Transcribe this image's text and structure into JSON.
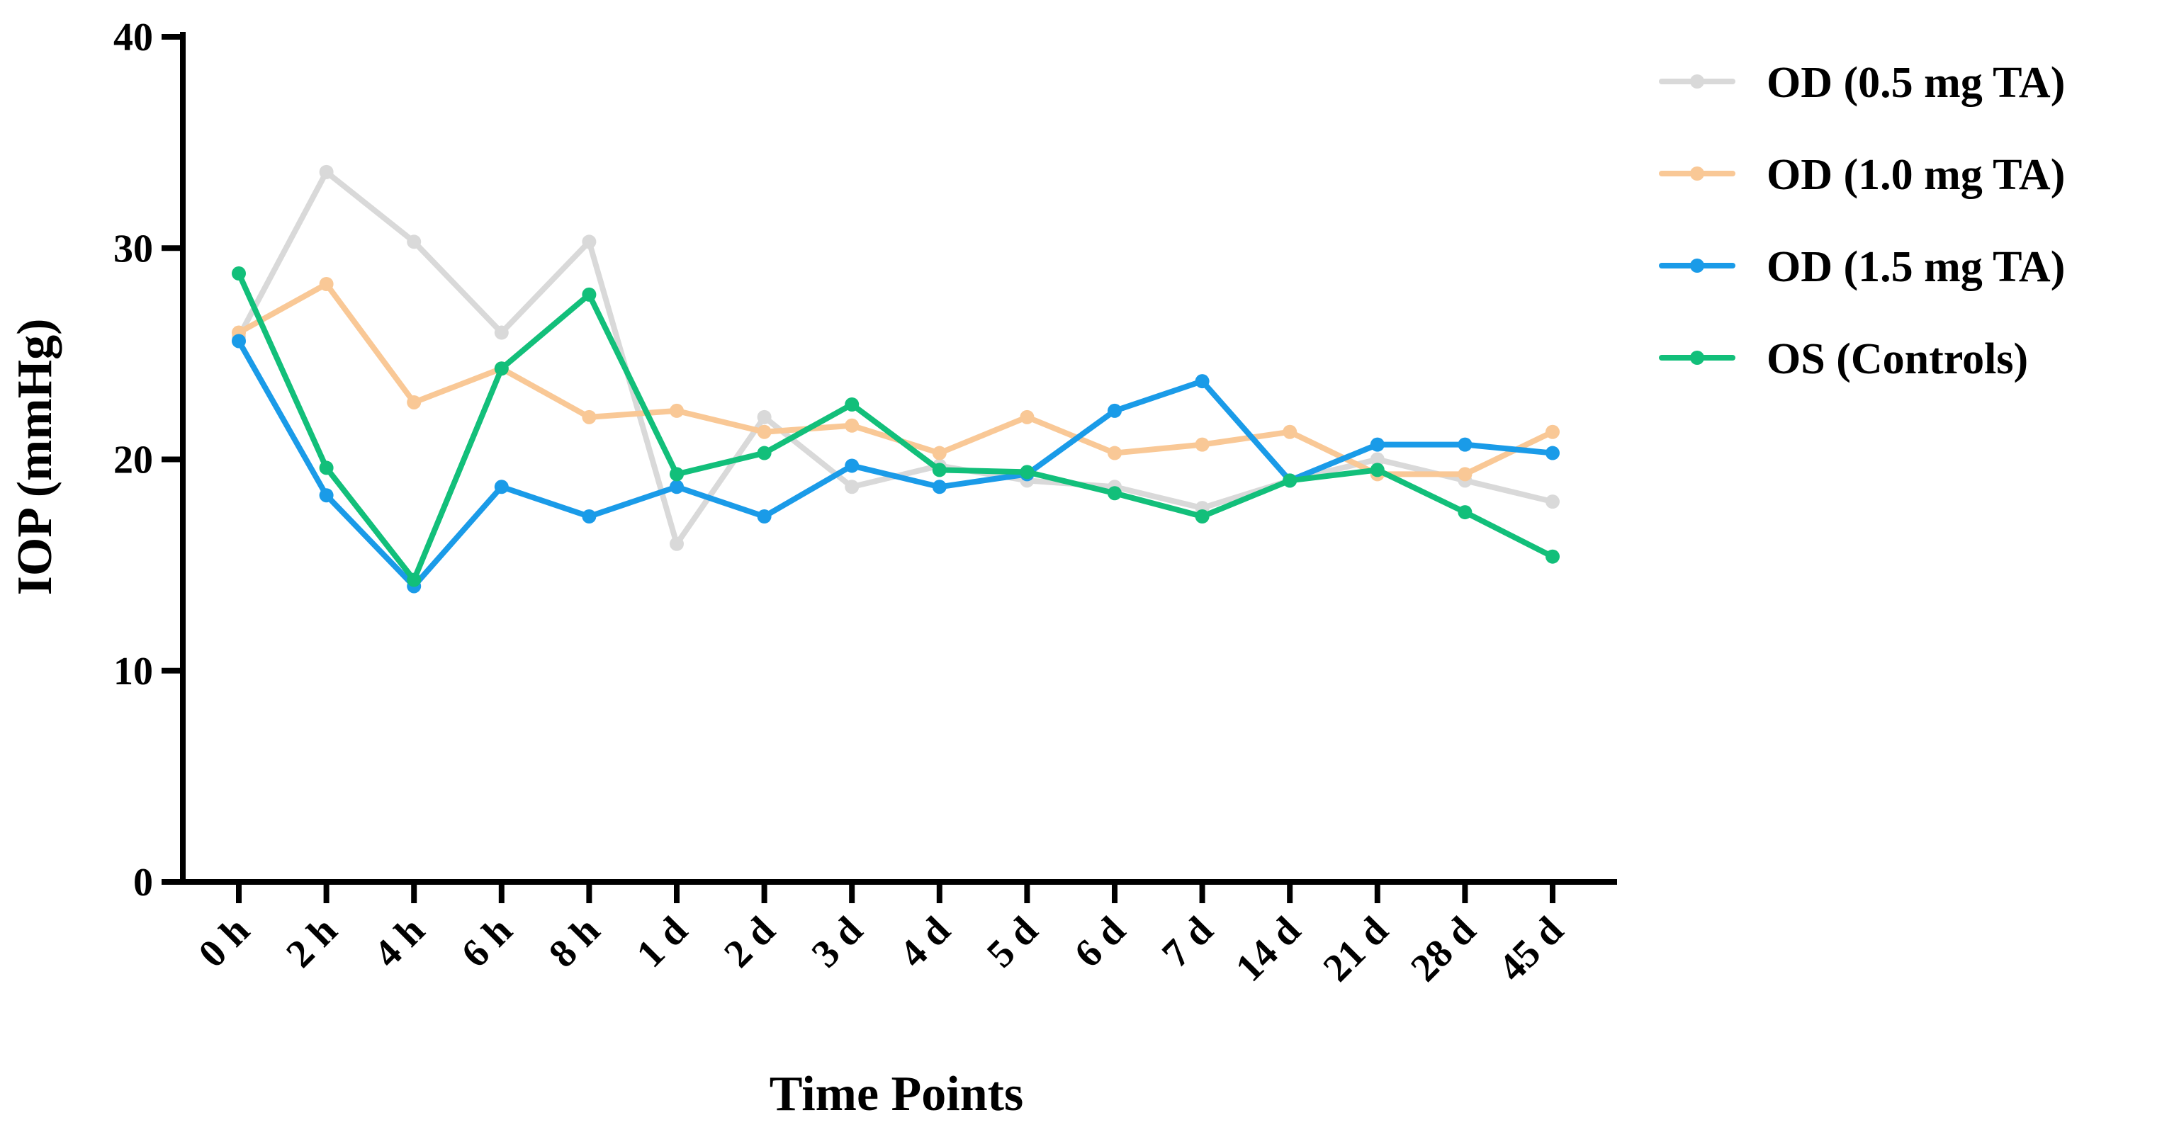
{
  "chart_data": {
    "type": "line",
    "categories": [
      "0 h",
      "2 h",
      "4 h",
      "6 h",
      "8 h",
      "1 d",
      "2 d",
      "3 d",
      "4 d",
      "5 d",
      "6 d",
      "7 d",
      "14 d",
      "21 d",
      "28 d",
      "45 d"
    ],
    "series": [
      {
        "name": "OD (0.5 mg TA)",
        "color": "#d9d9d9",
        "values": [
          25.8,
          33.6,
          30.3,
          26.0,
          30.3,
          16.0,
          22.0,
          18.7,
          19.7,
          19.0,
          18.7,
          17.7,
          19.0,
          20.0,
          19.0,
          18.0
        ]
      },
      {
        "name": "OD (1.0 mg TA)",
        "color": "#f9c896",
        "values": [
          26.0,
          28.3,
          22.7,
          24.3,
          22.0,
          22.3,
          21.3,
          21.6,
          20.3,
          22.0,
          20.3,
          20.7,
          21.3,
          19.3,
          19.3,
          21.3
        ]
      },
      {
        "name": "OD (1.5 mg TA)",
        "color": "#1a9be8",
        "values": [
          25.6,
          18.3,
          14.0,
          18.7,
          17.3,
          18.7,
          17.3,
          19.7,
          18.7,
          19.3,
          22.3,
          23.7,
          19.0,
          20.7,
          20.7,
          20.3
        ]
      },
      {
        "name": "OS (Controls)",
        "color": "#12bf7a",
        "values": [
          28.8,
          19.6,
          14.3,
          24.3,
          27.8,
          19.3,
          20.3,
          22.6,
          19.5,
          19.4,
          18.4,
          17.3,
          19.0,
          19.5,
          17.5,
          15.4
        ]
      }
    ],
    "title": "",
    "xlabel": "Time Points",
    "ylabel": "IOP (mmHg)",
    "ylim": [
      0,
      40
    ],
    "yticks": [
      "0",
      "10",
      "20",
      "30",
      "40"
    ],
    "grid": false,
    "legend_position": "top-right outside"
  }
}
